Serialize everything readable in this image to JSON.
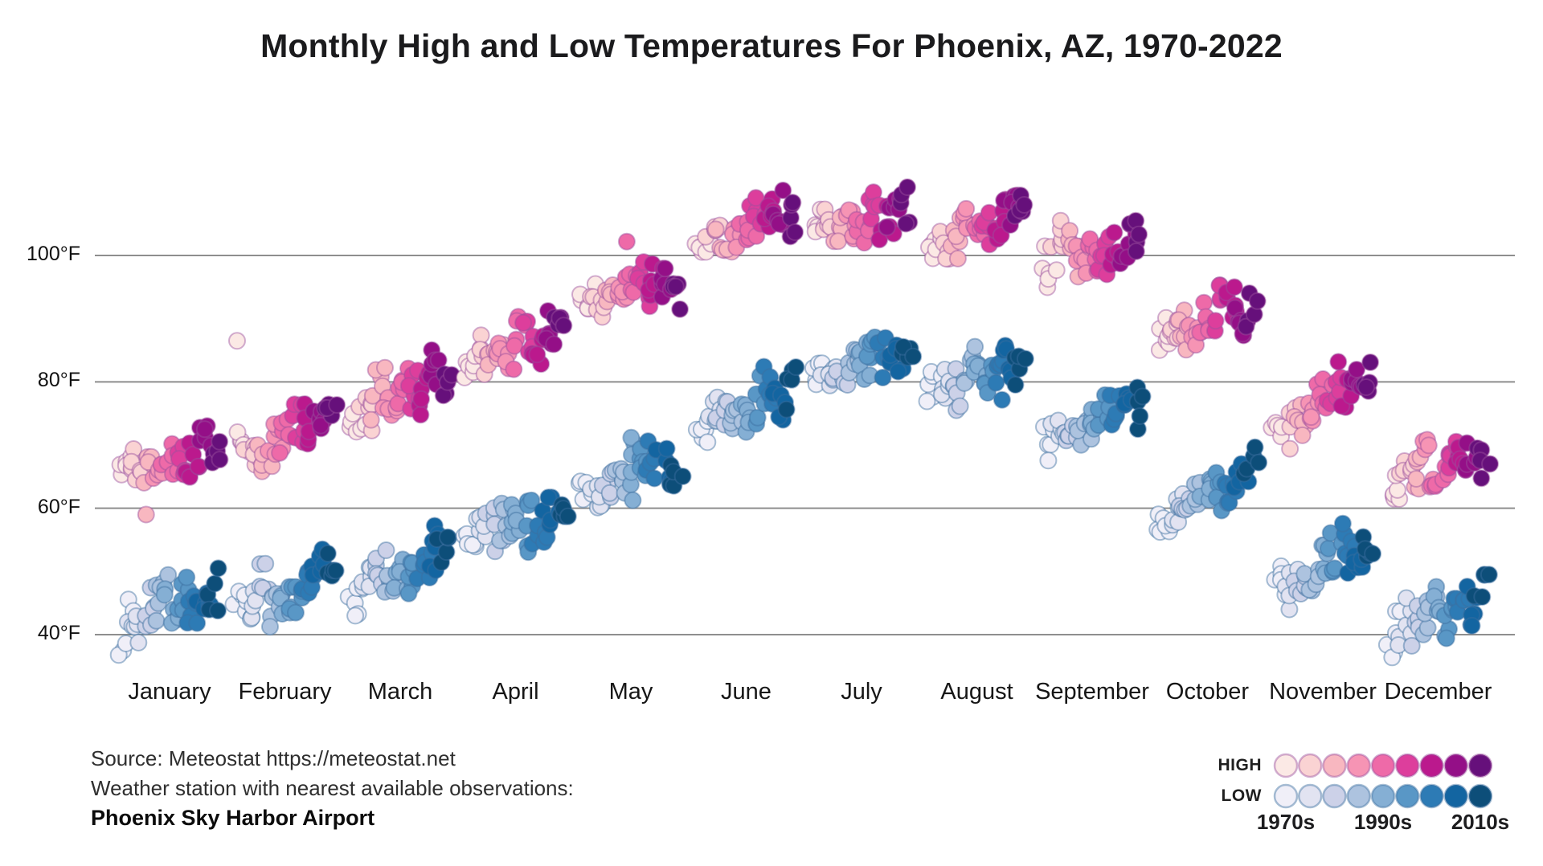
{
  "title": "Monthly High and Low Temperatures For Phoenix, AZ, 1970-2022",
  "source": {
    "line1": "Source: Meteostat https://meteostat.net",
    "line2": "Weather station with nearest available observations:",
    "line3": "Phoenix Sky Harbor Airport"
  },
  "y_axis": {
    "tick_labels": [
      "100°F",
      "80°F",
      "60°F",
      "40°F"
    ],
    "tick_values": [
      100,
      80,
      60,
      40
    ]
  },
  "legend": {
    "high_label": "HIGH",
    "low_label": "LOW",
    "decade_labels": [
      "1970s",
      "1990s",
      "2010s"
    ]
  },
  "colors": {
    "high_palette": [
      "#fbe9e5",
      "#fad3d3",
      "#f8b7c0",
      "#f694b4",
      "#ee6aa8",
      "#dd3e9c",
      "#bb198d",
      "#940f87",
      "#66107b"
    ],
    "low_palette": [
      "#f0eff8",
      "#e2e3f1",
      "#ccd1e8",
      "#adc3df",
      "#85afd4",
      "#5997c6",
      "#2d7bb5",
      "#1365a1",
      "#0d4e79"
    ],
    "high_stroke": "#9c4f9e",
    "low_stroke": "#3c6e9f",
    "gridline": "#8e8e8e",
    "text": "#1b1b1d"
  },
  "chart_data": {
    "type": "scatter",
    "title": "Monthly High and Low Temperatures For Phoenix, AZ, 1970-2022",
    "x_categories": [
      "January",
      "February",
      "March",
      "April",
      "May",
      "June",
      "July",
      "August",
      "September",
      "October",
      "November",
      "December"
    ],
    "year_range": [
      1970,
      2022
    ],
    "unit": "°F",
    "ylim": [
      35,
      112
    ],
    "yticks": [
      40,
      60,
      80,
      100
    ],
    "grid": "horizontal",
    "legend_position": "bottom-right",
    "point_encoding": {
      "x": "month, with years 1970 (left) to 2022 (right) inside each month cluster",
      "y": "temperature in °F",
      "color": "decade: lightest = 1970s, darkest = 2010s; pink/purple = HIGH, blue = LOW"
    },
    "months": [
      {
        "label": "January",
        "high": {
          "mean_1970": 65.5,
          "mean_2022": 70.5,
          "min": 61,
          "max": 76
        },
        "low": {
          "mean_1970": 42,
          "mean_2022": 46.5,
          "min": 36.5,
          "max": 50.5
        }
      },
      {
        "label": "February",
        "high": {
          "mean_1970": 69,
          "mean_2022": 74.5,
          "min": 64,
          "max": 81
        },
        "low": {
          "mean_1970": 44.5,
          "mean_2022": 49,
          "min": 40.5,
          "max": 53.5
        }
      },
      {
        "label": "March",
        "high": {
          "mean_1970": 75,
          "mean_2022": 80.5,
          "min": 70,
          "max": 86
        },
        "low": {
          "mean_1970": 47.5,
          "mean_2022": 53,
          "min": 43,
          "max": 57.5
        }
      },
      {
        "label": "April",
        "high": {
          "mean_1970": 83.5,
          "mean_2022": 89,
          "min": 78.5,
          "max": 94
        },
        "low": {
          "mean_1970": 54.5,
          "mean_2022": 60.5,
          "min": 50.5,
          "max": 64.5
        }
      },
      {
        "label": "May",
        "high": {
          "mean_1970": 92.5,
          "mean_2022": 98,
          "min": 88,
          "max": 103
        },
        "low": {
          "mean_1970": 62.5,
          "mean_2022": 69.5,
          "min": 58.5,
          "max": 74.5
        }
      },
      {
        "label": "June",
        "high": {
          "mean_1970": 102,
          "mean_2022": 106.5,
          "min": 98,
          "max": 109.5
        },
        "low": {
          "mean_1970": 72.5,
          "mean_2022": 79.5,
          "min": 69,
          "max": 84
        }
      },
      {
        "label": "July",
        "high": {
          "mean_1970": 104.5,
          "mean_2022": 107.5,
          "min": 101,
          "max": 110
        },
        "low": {
          "mean_1970": 79.5,
          "mean_2022": 84.5,
          "min": 76.5,
          "max": 88.5
        }
      },
      {
        "label": "August",
        "high": {
          "mean_1970": 102.5,
          "mean_2022": 106,
          "min": 99.5,
          "max": 109.5
        },
        "low": {
          "mean_1970": 78,
          "mean_2022": 84,
          "min": 75.5,
          "max": 87.5
        }
      },
      {
        "label": "September",
        "high": {
          "mean_1970": 97.5,
          "mean_2022": 102,
          "min": 93.5,
          "max": 105.5
        },
        "low": {
          "mean_1970": 71,
          "mean_2022": 77,
          "min": 67.5,
          "max": 81.5
        }
      },
      {
        "label": "October",
        "high": {
          "mean_1970": 87,
          "mean_2022": 92,
          "min": 83,
          "max": 96
        },
        "low": {
          "mean_1970": 58.5,
          "mean_2022": 65.5,
          "min": 53.5,
          "max": 70.5
        }
      },
      {
        "label": "November",
        "high": {
          "mean_1970": 74,
          "mean_2022": 79.5,
          "min": 68.5,
          "max": 84.5
        },
        "low": {
          "mean_1970": 48,
          "mean_2022": 54,
          "min": 44,
          "max": 58.5
        }
      },
      {
        "label": "December",
        "high": {
          "mean_1970": 64.5,
          "mean_2022": 68.5,
          "min": 60,
          "max": 71.5
        },
        "low": {
          "mean_1970": 41,
          "mean_2022": 45.5,
          "min": 36,
          "max": 49.5
        }
      }
    ],
    "jitter_sigma_f": 2.1,
    "outliers": [
      {
        "month_index": 0,
        "series": "high",
        "year": 1984,
        "temp_f": 59
      },
      {
        "month_index": 1,
        "series": "high",
        "year": 1971,
        "temp_f": 86.5
      },
      {
        "month_index": 0,
        "series": "low",
        "year": 1970,
        "temp_f": 37.5
      },
      {
        "month_index": 0,
        "series": "low",
        "year": 1971,
        "temp_f": 36.8
      },
      {
        "month_index": 0,
        "series": "low",
        "year": 1972,
        "temp_f": 38.6
      },
      {
        "month_index": 11,
        "series": "low",
        "year": 1970,
        "temp_f": 37.2
      },
      {
        "month_index": 11,
        "series": "low",
        "year": 1971,
        "temp_f": 38.4
      },
      {
        "month_index": 11,
        "series": "low",
        "year": 1973,
        "temp_f": 36.4
      },
      {
        "month_index": 5,
        "series": "high",
        "year": 2017,
        "temp_f": 110.3
      },
      {
        "month_index": 6,
        "series": "high",
        "year": 2020,
        "temp_f": 110.8
      },
      {
        "month_index": 4,
        "series": "high",
        "year": 1996,
        "temp_f": 102.2
      }
    ]
  }
}
